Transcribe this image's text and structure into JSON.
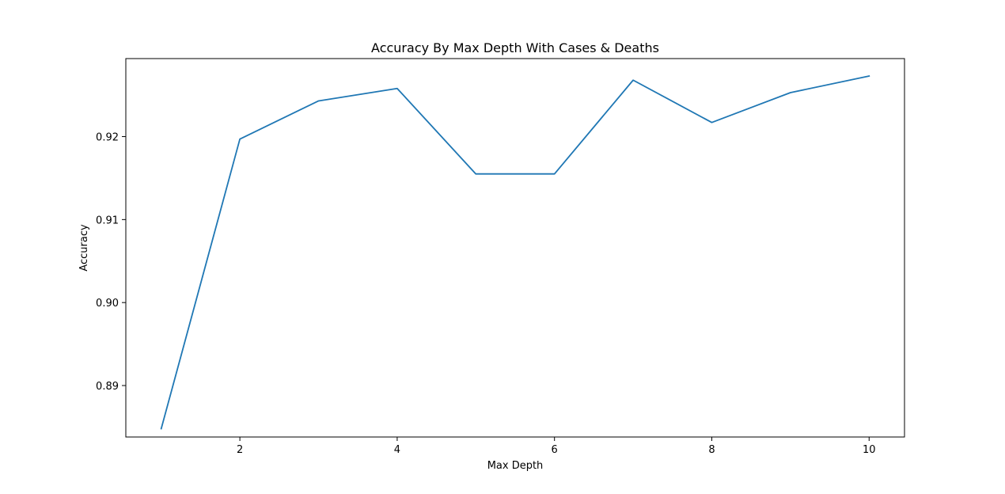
{
  "chart_data": {
    "type": "line",
    "title": "Accuracy By Max Depth With Cases & Deaths",
    "xlabel": "Max Depth",
    "ylabel": "Accuracy",
    "x": [
      1,
      2,
      3,
      4,
      5,
      6,
      7,
      8,
      9,
      10
    ],
    "series": [
      {
        "values": [
          0.8848,
          0.9197,
          0.9243,
          0.9258,
          0.9155,
          0.9155,
          0.9268,
          0.9217,
          0.9253,
          0.9273
        ],
        "color": "#1f77b4"
      }
    ],
    "xlim": [
      0.55,
      10.45
    ],
    "ylim": [
      0.8838,
      0.9294
    ],
    "xticks": [
      2,
      4,
      6,
      8,
      10
    ],
    "xtick_labels": [
      "2",
      "4",
      "6",
      "8",
      "10"
    ],
    "yticks": [
      0.89,
      0.9,
      0.91,
      0.92
    ],
    "ytick_labels": [
      "0.89",
      "0.90",
      "0.91",
      "0.92"
    ],
    "grid": false,
    "legend": "none"
  }
}
